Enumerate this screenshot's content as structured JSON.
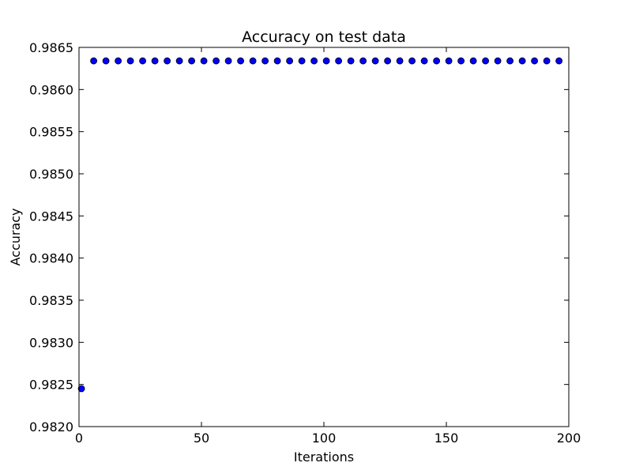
{
  "chart_data": {
    "type": "scatter",
    "title": "Accuracy on test data",
    "xlabel": "Iterations",
    "ylabel": "Accuracy",
    "xlim": [
      0,
      200
    ],
    "ylim": [
      0.982,
      0.9865
    ],
    "x_ticks": [
      0,
      50,
      100,
      150,
      200
    ],
    "x_tick_labels": [
      "0",
      "50",
      "100",
      "150",
      "200"
    ],
    "y_ticks": [
      0.982,
      0.9825,
      0.983,
      0.9835,
      0.984,
      0.9845,
      0.985,
      0.9855,
      0.986,
      0.9865
    ],
    "y_tick_labels": [
      "0.9820",
      "0.9825",
      "0.9830",
      "0.9835",
      "0.9840",
      "0.9845",
      "0.9850",
      "0.9855",
      "0.9860",
      "0.9865"
    ],
    "grid": false,
    "marker_color": "#0000ff",
    "marker_edge_color": "#000000",
    "series": [
      {
        "x": [
          1,
          6,
          11,
          16,
          21,
          26,
          31,
          36,
          41,
          46,
          51,
          56,
          61,
          66,
          71,
          76,
          81,
          86,
          91,
          96,
          101,
          106,
          111,
          116,
          121,
          126,
          131,
          136,
          141,
          146,
          151,
          156,
          161,
          166,
          171,
          176,
          181,
          186,
          191,
          196
        ],
        "y": [
          0.98245,
          0.98634,
          0.98634,
          0.98634,
          0.98634,
          0.98634,
          0.98634,
          0.98634,
          0.98634,
          0.98634,
          0.98634,
          0.98634,
          0.98634,
          0.98634,
          0.98634,
          0.98634,
          0.98634,
          0.98634,
          0.98634,
          0.98634,
          0.98634,
          0.98634,
          0.98634,
          0.98634,
          0.98634,
          0.98634,
          0.98634,
          0.98634,
          0.98634,
          0.98634,
          0.98634,
          0.98634,
          0.98634,
          0.98634,
          0.98634,
          0.98634,
          0.98634,
          0.98634,
          0.98634,
          0.98634
        ]
      }
    ]
  }
}
